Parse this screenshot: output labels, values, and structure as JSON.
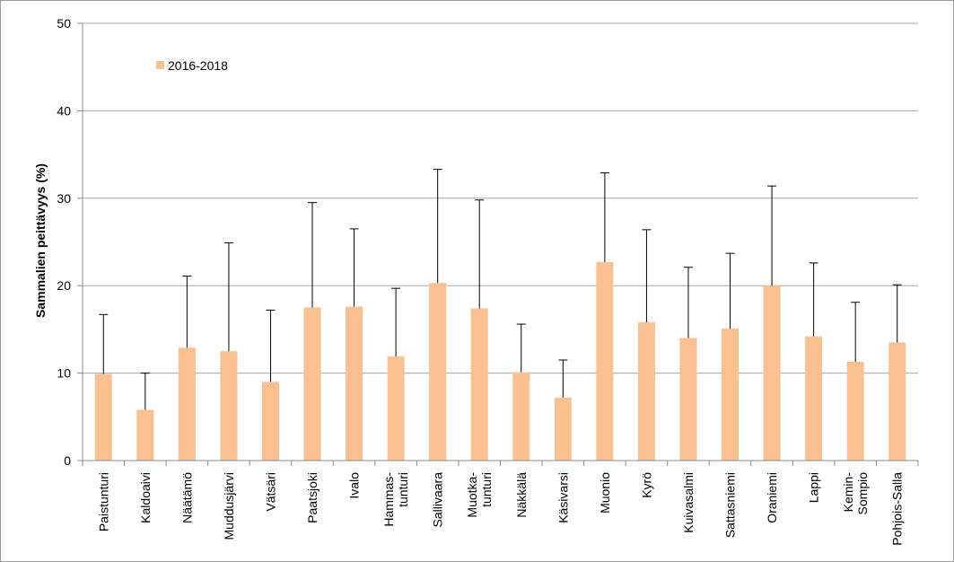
{
  "chart_data": {
    "type": "bar",
    "ylabel": "Sammalien peittävyys (%)",
    "xlabel": "",
    "ylim": [
      0,
      50
    ],
    "yticks": [
      0,
      10,
      20,
      30,
      40,
      50
    ],
    "grid": true,
    "legend_position": "top-left",
    "categories": [
      [
        "Paistunturi"
      ],
      [
        "Kaldoaivi"
      ],
      [
        "Näätämö"
      ],
      [
        "Muddusjärvi"
      ],
      [
        "Vätsäri"
      ],
      [
        "Paatsjoki"
      ],
      [
        "Ivalo"
      ],
      [
        "Hammas-",
        "tunturi"
      ],
      [
        "Sallivaara"
      ],
      [
        "Muotka-",
        "tunturi"
      ],
      [
        "Näkkälä"
      ],
      [
        "Käsivarsi"
      ],
      [
        "Muonio"
      ],
      [
        "Kyrö"
      ],
      [
        "Kuivasalmi"
      ],
      [
        "Sattasniemi"
      ],
      [
        "Oraniemi"
      ],
      [
        "Lappi"
      ],
      [
        "Kemin-",
        "Sompio"
      ],
      [
        "Pohjois-Salla"
      ]
    ],
    "series": [
      {
        "name": "2016-2018",
        "color": "#FAC090",
        "values": [
          9.9,
          5.8,
          12.9,
          12.5,
          9.0,
          17.5,
          17.6,
          11.9,
          20.3,
          17.4,
          10.1,
          7.2,
          22.7,
          15.8,
          14.0,
          15.1,
          20.0,
          14.2,
          11.3,
          13.5
        ],
        "error": [
          6.8,
          4.2,
          8.2,
          12.4,
          8.2,
          12.0,
          8.9,
          7.8,
          13.0,
          12.4,
          5.5,
          4.3,
          10.2,
          10.6,
          8.1,
          8.6,
          11.4,
          8.4,
          6.8,
          6.6
        ]
      }
    ]
  }
}
